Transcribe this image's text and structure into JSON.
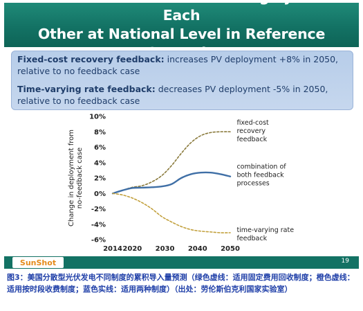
{
  "slide": {
    "title": "Two Feedback Mechanisms Largely Offset Each\nOther at National Level in Reference Scenario",
    "feedback": [
      {
        "head": "Fixed-cost recovery feedback:",
        "text": " increases PV deployment +8% in 2050, relative to no feedback case"
      },
      {
        "head": "Time-varying rate feedback:",
        "text": " decreases PV deployment -5% in 2050, relative to no feedback case"
      }
    ],
    "logo": "SunShot",
    "page_number": "19",
    "colors": {
      "title_bg": "#137264",
      "box_bg": "#c6d7ee",
      "box_text": "#1f3d6a",
      "caption_text": "#1f3fa8"
    }
  },
  "caption": "图3：美国分散型光伏发电不同制度的累积导入量预测（绿色虚线：适用固定费用回收制度；橙色虚线：适用按时段收费制度；蓝色实线：适用两种制度）（出处：劳伦斯伯克利国家实验室）",
  "chart_data": {
    "type": "line",
    "ylabel": "Change in deployment from no-feedback case",
    "xlabel": "",
    "xlim": [
      2014,
      2050
    ],
    "ylim": [
      -6,
      10
    ],
    "x_ticks": [
      2014,
      2020,
      2030,
      2040,
      2050
    ],
    "y_ticks": [
      "-6%",
      "-4%",
      "-2%",
      "0%",
      "2%",
      "4%",
      "6%",
      "8%",
      "10%"
    ],
    "y_tick_values": [
      -6,
      -4,
      -2,
      0,
      2,
      4,
      6,
      8,
      10
    ],
    "grid": false,
    "series": [
      {
        "name": "fixed-cost recovery feedback",
        "style": "dashed",
        "color": "#8a7a3c",
        "x": [
          2014,
          2017,
          2020,
          2023,
          2026,
          2029,
          2032,
          2035,
          2038,
          2041,
          2044,
          2047,
          2050
        ],
        "values": [
          0,
          0.4,
          0.8,
          1.0,
          1.5,
          2.3,
          3.6,
          5.2,
          6.6,
          7.5,
          7.9,
          8.0,
          8.0
        ]
      },
      {
        "name": "combination of both feedback processes",
        "style": "solid",
        "color": "#3f6fa6",
        "x": [
          2014,
          2017,
          2020,
          2023,
          2026,
          2029,
          2032,
          2035,
          2038,
          2041,
          2044,
          2047,
          2050
        ],
        "values": [
          0,
          0.4,
          0.7,
          0.75,
          0.8,
          0.9,
          1.2,
          2.0,
          2.5,
          2.7,
          2.7,
          2.5,
          2.2
        ]
      },
      {
        "name": "time-varying rate feedback",
        "style": "dashed",
        "color": "#c2a03c",
        "x": [
          2014,
          2017,
          2020,
          2023,
          2026,
          2029,
          2032,
          2035,
          2038,
          2041,
          2044,
          2047,
          2050
        ],
        "values": [
          0,
          -0.2,
          -0.6,
          -1.2,
          -2.0,
          -3.0,
          -3.7,
          -4.3,
          -4.7,
          -4.9,
          -5.0,
          -5.1,
          -5.1
        ]
      }
    ],
    "annotations": [
      {
        "lines": [
          "fixed-cost",
          "recovery",
          "feedback"
        ],
        "at": [
          2052,
          8.9
        ]
      },
      {
        "lines": [
          "combination of",
          "both feedback",
          "processes"
        ],
        "at": [
          2052,
          3.2
        ]
      },
      {
        "lines": [
          "time-varying rate",
          "feedback"
        ],
        "at": [
          2052,
          -5.0
        ]
      }
    ]
  }
}
